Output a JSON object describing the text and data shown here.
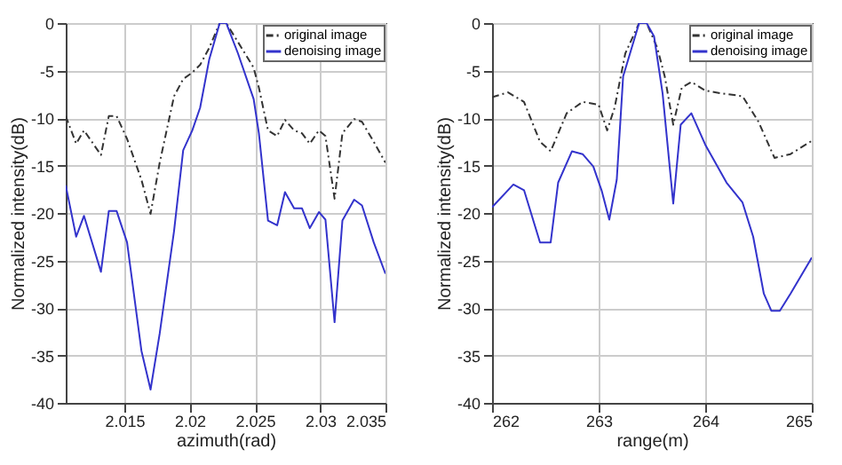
{
  "chart_data": [
    {
      "type": "line",
      "xlabel": "azimuth(rad)",
      "ylabel": "Normalized intensity(dB)",
      "xlim": [
        2.0105,
        2.035
      ],
      "xticks": [
        2.015,
        2.02,
        2.025,
        2.03,
        2.035
      ],
      "ylim": [
        -40,
        0
      ],
      "yticks": [
        -40,
        -35,
        -30,
        -25,
        -20,
        -15,
        -10,
        -5,
        0
      ],
      "grid": true,
      "legend": "top right",
      "x": [
        2.0105,
        2.0113,
        2.0119,
        2.0132,
        2.0138,
        2.0144,
        2.0152,
        2.0163,
        2.017,
        2.0177,
        2.0188,
        2.0195,
        2.0202,
        2.0208,
        2.0215,
        2.0223,
        2.0228,
        2.0237,
        2.0249,
        2.0253,
        2.026,
        2.0267,
        2.0273,
        2.028,
        2.0286,
        2.0292,
        2.0299,
        2.0304,
        2.0311,
        2.0317,
        2.0326,
        2.0332,
        2.0341,
        2.035
      ],
      "series": [
        {
          "name": "original image",
          "color": "#333333",
          "line_style": "dashdot",
          "values": [
            -9.8,
            -12.7,
            -11.3,
            -13.9,
            -9.8,
            -9.8,
            -12.2,
            -16.5,
            -20.1,
            -14.7,
            -7.7,
            -5.9,
            -5.2,
            -4.4,
            -2.6,
            0,
            0,
            -2,
            -4.7,
            -6.8,
            -11.3,
            -11.9,
            -10.2,
            -11.3,
            -11.6,
            -12.7,
            -11.3,
            -11.9,
            -18.5,
            -11.6,
            -10.1,
            -10.4,
            -12.5,
            -14.7
          ]
        },
        {
          "name": "denoising image",
          "color": "#3333cc",
          "line_style": "solid",
          "values": [
            -17.1,
            -22.5,
            -20.3,
            -26.2,
            -19.8,
            -19.8,
            -23.1,
            -34.5,
            -38.6,
            -32.7,
            -21.9,
            -13.4,
            -11.3,
            -8.9,
            -3.8,
            0,
            0,
            -3.2,
            -8,
            -11.6,
            -20.8,
            -21.3,
            -17.8,
            -19.5,
            -19.5,
            -21.6,
            -19.9,
            -20.7,
            -31.5,
            -20.8,
            -18.6,
            -19.2,
            -23.1,
            -26.4
          ]
        }
      ]
    },
    {
      "type": "line",
      "xlabel": "range(m)",
      "ylabel": "Normalized intensity(dB)",
      "xlim": [
        262,
        265
      ],
      "xticks": [
        262,
        263,
        264,
        265
      ],
      "ylim": [
        -40,
        0
      ],
      "yticks": [
        -40,
        -35,
        -30,
        -25,
        -20,
        -15,
        -10,
        -5,
        0
      ],
      "grid": true,
      "legend": "top right",
      "series": [
        {
          "name": "original image",
          "color": "#333333",
          "line_style": "dashdot",
          "x": [
            262,
            262.15,
            262.3,
            262.45,
            262.55,
            262.7,
            262.85,
            263,
            263.08,
            263.15,
            263.25,
            263.38,
            263.45,
            263.55,
            263.62,
            263.7,
            263.78,
            263.87,
            264,
            264.15,
            264.35,
            264.5,
            264.65,
            264.8,
            265
          ],
          "values": [
            -7.8,
            -7.3,
            -8.3,
            -12.5,
            -13.5,
            -9.5,
            -8.3,
            -8.6,
            -11.3,
            -8.9,
            -3.2,
            0,
            0,
            -2.6,
            -5.6,
            -10.7,
            -6.8,
            -6.2,
            -7.1,
            -7.4,
            -7.7,
            -10.4,
            -14.2,
            -13.8,
            -12.4
          ]
        },
        {
          "name": "denoising image",
          "color": "#3333cc",
          "line_style": "solid",
          "x": [
            262,
            262.2,
            262.3,
            262.45,
            262.55,
            262.62,
            262.75,
            262.85,
            262.95,
            263.03,
            263.1,
            263.17,
            263.23,
            263.38,
            263.45,
            263.52,
            263.6,
            263.7,
            263.77,
            263.87,
            264,
            264.2,
            264.35,
            264.45,
            264.55,
            264.62,
            264.7,
            264.8,
            265
          ],
          "values": [
            -19.4,
            -17,
            -17.6,
            -23.1,
            -23.1,
            -16.8,
            -13.5,
            -13.8,
            -15.1,
            -17.7,
            -20.7,
            -16.5,
            -5.6,
            0,
            0,
            -1.4,
            -7.4,
            -19,
            -10.7,
            -9.5,
            -12.8,
            -16.8,
            -18.9,
            -22.5,
            -28.5,
            -30.3,
            -30.3,
            -28.5,
            -24.7
          ]
        }
      ]
    }
  ]
}
